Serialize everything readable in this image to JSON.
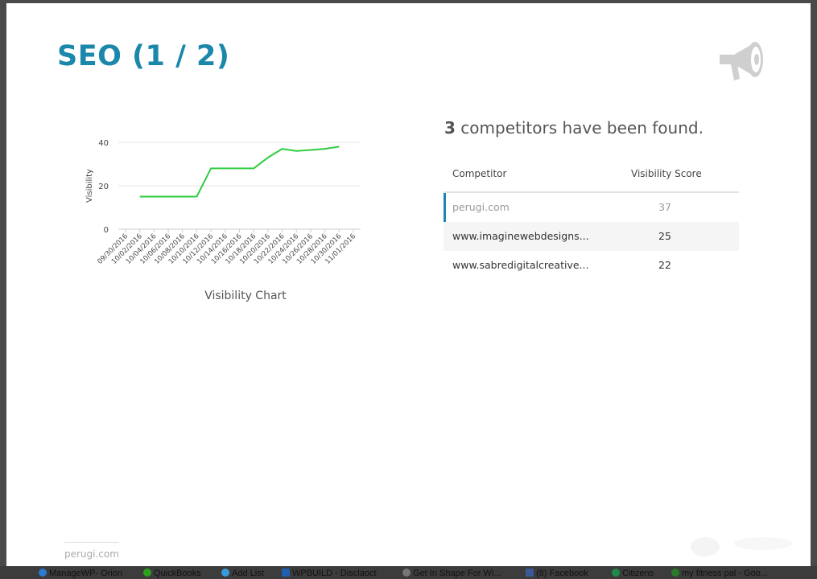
{
  "page": {
    "title": "SEO (1 / 2)",
    "footer": "perugi.com"
  },
  "icons": {
    "header": "megaphone-icon"
  },
  "colors": {
    "accent": "#1a87ab",
    "line": "#2ecc40",
    "title": "#1a87ab"
  },
  "competitors": {
    "count": "3",
    "heading_rest": " competitors have been found.",
    "columns": {
      "competitor": "Competitor",
      "score": "Visibility Score"
    },
    "rows": [
      {
        "name": "perugi.com",
        "score": "37"
      },
      {
        "name": "www.imaginewebdesigns...",
        "score": "25"
      },
      {
        "name": "www.sabredigitalcreative...",
        "score": "22"
      }
    ]
  },
  "taskbar": [
    "ManageWP- Orion",
    "QuickBooks",
    "Add List",
    "WPBUILD - Disclaoct",
    "Get In Shape For Wi...",
    "(8) Facebook",
    "Citizens",
    "my fitness pal - Goo..."
  ],
  "chart_data": {
    "type": "line",
    "title": "",
    "caption": "Visibility Chart",
    "xlabel": "",
    "ylabel": "Visibility",
    "ylim": [
      0,
      40
    ],
    "yticks": [
      0,
      20,
      40
    ],
    "grid": true,
    "categories": [
      "09/30/2016",
      "10/02/2016",
      "10/04/2016",
      "10/06/2016",
      "10/08/2016",
      "10/10/2016",
      "10/12/2016",
      "10/14/2016",
      "10/16/2016",
      "10/18/2016",
      "10/20/2016",
      "10/22/2016",
      "10/24/2016",
      "10/26/2016",
      "10/28/2016",
      "10/30/2016",
      "11/01/2016"
    ],
    "series": [
      {
        "values": [
          null,
          15,
          15,
          15,
          15,
          15,
          28,
          28,
          28,
          28,
          33,
          37,
          36,
          36.5,
          37,
          38,
          null
        ]
      }
    ]
  }
}
